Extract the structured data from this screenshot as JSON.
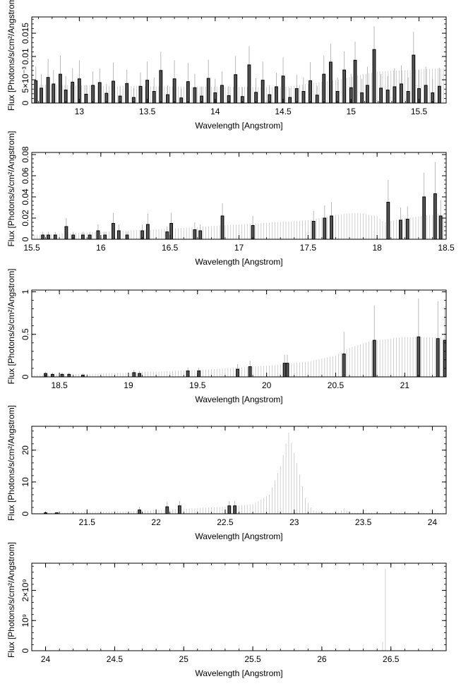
{
  "chart_data": [
    {
      "type": "bar",
      "xlabel": "Wavelength [Angstrom]",
      "ylabel": "Flux [Photons/s/cm²/Angstrom]",
      "xlim": [
        12.65,
        15.7
      ],
      "ylim": [
        0,
        0.0185
      ],
      "xticks": [
        13,
        13.5,
        14,
        14.5,
        15,
        15.5
      ],
      "xtick_labels": [
        "13",
        "13.5",
        "14",
        "14.5",
        "15",
        "15.5"
      ],
      "yticks": [
        0,
        0.005,
        0.01,
        0.015
      ],
      "ytick_labels": [
        "0",
        "5×10⁻³",
        "0.01",
        "0.015"
      ],
      "model_x": [
        12.65,
        13.0,
        13.5,
        14.0,
        14.5,
        14.9,
        15.2,
        15.5,
        15.7
      ],
      "model_y": [
        0.004,
        0.0038,
        0.0036,
        0.0035,
        0.0034,
        0.005,
        0.0068,
        0.0072,
        0.0075
      ],
      "x": [
        12.68,
        12.72,
        12.77,
        12.81,
        12.86,
        12.9,
        12.95,
        13.0,
        13.05,
        13.1,
        13.15,
        13.2,
        13.25,
        13.3,
        13.35,
        13.4,
        13.45,
        13.5,
        13.55,
        13.6,
        13.65,
        13.7,
        13.75,
        13.8,
        13.85,
        13.9,
        13.95,
        14.0,
        14.05,
        14.1,
        14.15,
        14.2,
        14.25,
        14.3,
        14.35,
        14.4,
        14.45,
        14.5,
        14.55,
        14.6,
        14.65,
        14.7,
        14.75,
        14.8,
        14.85,
        14.9,
        14.95,
        15.0,
        15.03,
        15.08,
        15.12,
        15.17,
        15.22,
        15.27,
        15.32,
        15.37,
        15.42,
        15.46,
        15.5,
        15.55,
        15.6,
        15.65
      ],
      "values": [
        0.0048,
        0.0032,
        0.0055,
        0.0041,
        0.0062,
        0.0028,
        0.0045,
        0.0052,
        0.0019,
        0.0038,
        0.0044,
        0.0021,
        0.0047,
        0.0015,
        0.0042,
        0.0012,
        0.0036,
        0.0049,
        0.0025,
        0.007,
        0.0018,
        0.0052,
        0.0011,
        0.0046,
        0.0033,
        0.0015,
        0.0053,
        0.0022,
        0.0038,
        0.0016,
        0.0061,
        0.0014,
        0.0082,
        0.0023,
        0.0049,
        0.0018,
        0.0035,
        0.0058,
        0.0012,
        0.0031,
        0.0025,
        0.0048,
        0.0017,
        0.0062,
        0.0088,
        0.0025,
        0.0071,
        0.0033,
        0.0092,
        0.0022,
        0.0038,
        0.0115,
        0.0032,
        0.0028,
        0.0035,
        0.0041,
        0.0025,
        0.0103,
        0.0031,
        0.0038,
        0.0022,
        0.0036
      ],
      "errors": [
        0.003,
        0.003,
        0.004,
        0.003,
        0.004,
        0.003,
        0.003,
        0.004,
        0.002,
        0.003,
        0.003,
        0.002,
        0.004,
        0.002,
        0.003,
        0.002,
        0.003,
        0.004,
        0.003,
        0.004,
        0.002,
        0.004,
        0.002,
        0.004,
        0.003,
        0.002,
        0.004,
        0.003,
        0.003,
        0.002,
        0.004,
        0.002,
        0.004,
        0.003,
        0.004,
        0.002,
        0.003,
        0.004,
        0.002,
        0.003,
        0.003,
        0.004,
        0.002,
        0.004,
        0.004,
        0.003,
        0.004,
        0.003,
        0.004,
        0.003,
        0.004,
        0.005,
        0.003,
        0.003,
        0.004,
        0.004,
        0.003,
        0.005,
        0.004,
        0.004,
        0.003,
        0.004
      ]
    },
    {
      "type": "bar",
      "xlabel": "Wavelength [Angstrom]",
      "ylabel": "Flux [Photons/s/cm²/Angstrom]",
      "xlim": [
        15.5,
        18.5
      ],
      "ylim": [
        0,
        0.082
      ],
      "xticks": [
        15.5,
        16,
        16.5,
        17,
        17.5,
        18,
        18.5
      ],
      "xtick_labels": [
        "15.5",
        "16",
        "16.5",
        "17",
        "17.5",
        "18",
        "18.5"
      ],
      "yticks": [
        0,
        0.02,
        0.04,
        0.06,
        0.08
      ],
      "ytick_labels": [
        "0",
        "0.02",
        "0.04",
        "0.06",
        "0.08"
      ],
      "model_x": [
        15.5,
        16.0,
        16.5,
        17.0,
        17.5,
        17.7,
        17.85,
        18.0,
        18.05,
        18.2,
        18.5
      ],
      "model_y": [
        0.004,
        0.007,
        0.01,
        0.014,
        0.018,
        0.023,
        0.025,
        0.022,
        0.016,
        0.02,
        0.025
      ],
      "x": [
        15.58,
        15.62,
        15.67,
        15.75,
        15.8,
        15.87,
        15.92,
        15.98,
        16.03,
        16.09,
        16.13,
        16.19,
        16.3,
        16.34,
        16.48,
        16.51,
        16.68,
        16.72,
        16.88,
        17.1,
        17.54,
        17.62,
        17.67,
        18.08,
        18.17,
        18.22,
        18.34,
        18.42,
        18.46
      ],
      "values": [
        0.004,
        0.004,
        0.004,
        0.012,
        0.004,
        0.004,
        0.004,
        0.008,
        0.004,
        0.015,
        0.008,
        0.004,
        0.008,
        0.014,
        0.007,
        0.015,
        0.009,
        0.008,
        0.022,
        0.013,
        0.017,
        0.02,
        0.022,
        0.035,
        0.018,
        0.019,
        0.04,
        0.043,
        0.022
      ],
      "errors": [
        0.003,
        0.003,
        0.003,
        0.008,
        0.003,
        0.003,
        0.003,
        0.006,
        0.003,
        0.01,
        0.006,
        0.003,
        0.006,
        0.01,
        0.005,
        0.01,
        0.007,
        0.006,
        0.012,
        0.009,
        0.01,
        0.012,
        0.013,
        0.021,
        0.012,
        0.012,
        0.023,
        0.03,
        0.015
      ]
    },
    {
      "type": "bar",
      "xlabel": "Wavelength [Angstrom]",
      "ylabel": "Flux [Photons/s/cm²/Angstrom]",
      "xlim": [
        18.3,
        21.3
      ],
      "ylim": [
        0,
        1.02
      ],
      "xticks": [
        18.5,
        19,
        19.5,
        20,
        20.5,
        21
      ],
      "xtick_labels": [
        "18.5",
        "19",
        "19.5",
        "20",
        "20.5",
        "21"
      ],
      "yticks": [
        0,
        0.5,
        1
      ],
      "ytick_labels": [
        "0",
        "0.5",
        "1"
      ],
      "model_x": [
        18.3,
        18.8,
        19.2,
        19.6,
        20.0,
        20.3,
        20.5,
        20.6,
        20.75,
        21.0,
        21.3
      ],
      "model_y": [
        0.02,
        0.04,
        0.06,
        0.09,
        0.13,
        0.18,
        0.25,
        0.34,
        0.42,
        0.47,
        0.46
      ],
      "x": [
        18.4,
        18.45,
        18.52,
        18.57,
        18.67,
        19.04,
        19.08,
        19.43,
        19.51,
        19.79,
        19.88,
        20.13,
        20.15,
        20.56,
        20.78,
        21.1,
        21.24,
        21.29
      ],
      "values": [
        0.04,
        0.03,
        0.03,
        0.03,
        0.02,
        0.05,
        0.04,
        0.07,
        0.07,
        0.09,
        0.12,
        0.16,
        0.16,
        0.27,
        0.43,
        0.47,
        0.45,
        0.43
      ],
      "errors": [
        0.02,
        0.02,
        0.02,
        0.02,
        0.02,
        0.03,
        0.03,
        0.04,
        0.04,
        0.06,
        0.07,
        0.1,
        0.1,
        0.26,
        0.41,
        0.45,
        0.44,
        0.4
      ]
    },
    {
      "type": "bar",
      "xlabel": "Wavelength [Angstrom]",
      "ylabel": "Flux [Photons/s/cm²/Angstrom]",
      "xlim": [
        21.1,
        24.1
      ],
      "ylim": [
        0,
        27.5
      ],
      "xticks": [
        21.5,
        22,
        22.5,
        23,
        23.5,
        24
      ],
      "xtick_labels": [
        "21.5",
        "22",
        "22.5",
        "23",
        "23.5",
        "24"
      ],
      "yticks": [
        0,
        10,
        20
      ],
      "ytick_labels": [
        "0",
        "10",
        "20"
      ],
      "model_x": [
        21.1,
        21.8,
        22.2,
        22.5,
        22.7,
        22.82,
        22.9,
        22.96,
        23.02,
        23.08,
        23.13,
        23.2,
        23.32,
        23.36,
        23.4,
        24.1
      ],
      "model_y": [
        0.2,
        0.8,
        1.6,
        2.2,
        3.0,
        6.0,
        15.0,
        25.5,
        16.0,
        5.0,
        1.2,
        0.4,
        0.3,
        1.8,
        0.3,
        0.2
      ],
      "x": [
        21.2,
        21.28,
        21.88,
        22.08,
        22.17,
        22.53,
        22.57
      ],
      "values": [
        0.3,
        0.3,
        1.2,
        2.2,
        2.5,
        2.5,
        2.5
      ],
      "errors": [
        0.3,
        0.3,
        1.0,
        1.5,
        1.5,
        1.5,
        1.6
      ]
    },
    {
      "type": "bar",
      "xlabel": "Wavelength [Angstrom]",
      "ylabel": "Flux [Photons/s/cm²/Angstrom]",
      "xlim": [
        23.9,
        26.9
      ],
      "ylim": [
        0,
        2900000000
      ],
      "xticks": [
        24,
        24.5,
        25,
        25.5,
        26,
        26.5
      ],
      "xtick_labels": [
        "24",
        "24.5",
        "25",
        "25.5",
        "26",
        "26.5"
      ],
      "yticks": [
        0,
        1000000000,
        2000000000
      ],
      "ytick_labels": [
        "0",
        "10⁹",
        "2×10⁹"
      ],
      "model_x": [
        23.9,
        26.42,
        26.44,
        26.46,
        26.47,
        26.9
      ],
      "model_y": [
        0,
        0,
        300000000,
        2700000000,
        0,
        0
      ],
      "x": [],
      "values": [],
      "errors": []
    }
  ]
}
